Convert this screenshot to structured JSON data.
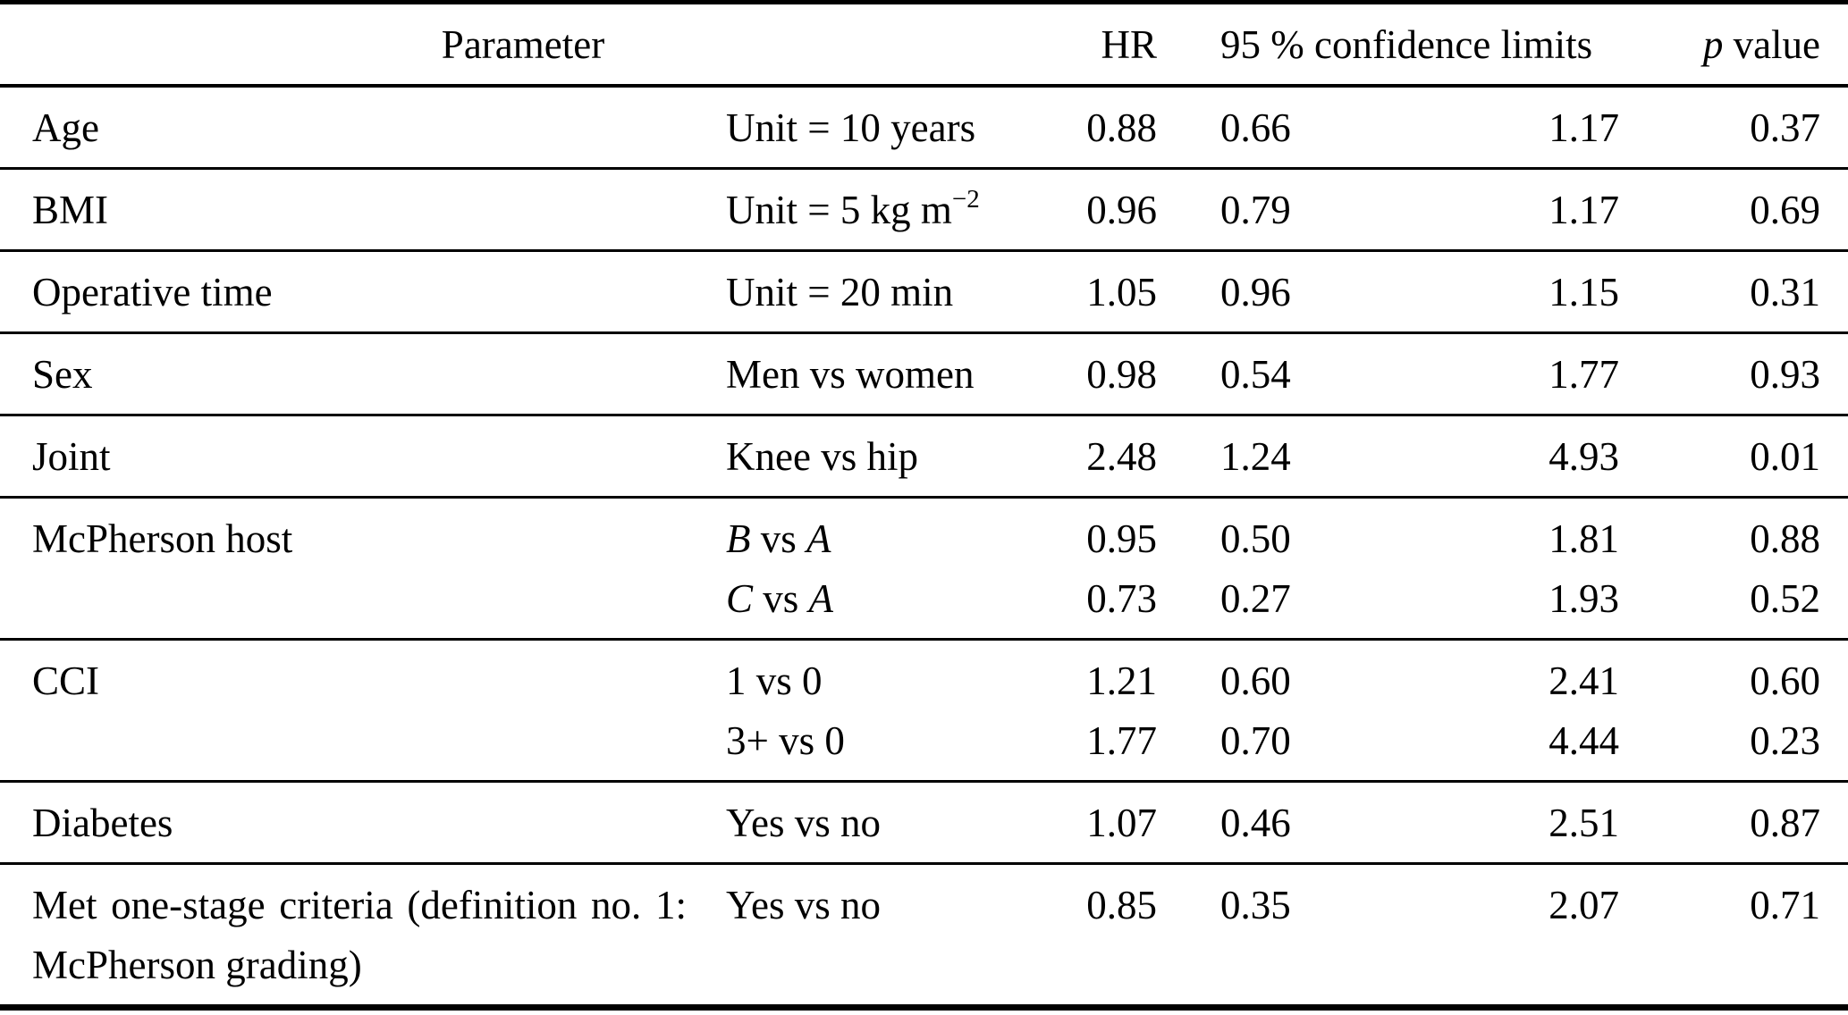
{
  "colors": {
    "background": "#ffffff",
    "text": "#000000",
    "rule": "#000000"
  },
  "table": {
    "header": {
      "parameter": "Parameter",
      "hr": "HR",
      "ci": "95 % confidence limits",
      "p_italic": "p",
      "p_rest": " value"
    },
    "rows": [
      {
        "parameter": "Age",
        "lines": [
          {
            "comparison": [
              {
                "text": "Unit = 10 years"
              }
            ],
            "hr": "0.88",
            "ci_low": "0.66",
            "ci_high": "1.17",
            "p": "0.37"
          }
        ]
      },
      {
        "parameter": "BMI",
        "lines": [
          {
            "comparison": [
              {
                "text": "Unit = 5 kg m"
              },
              {
                "text": "−2",
                "sup": true
              }
            ],
            "hr": "0.96",
            "ci_low": "0.79",
            "ci_high": "1.17",
            "p": "0.69"
          }
        ]
      },
      {
        "parameter": "Operative time",
        "lines": [
          {
            "comparison": [
              {
                "text": "Unit = 20 min"
              }
            ],
            "hr": "1.05",
            "ci_low": "0.96",
            "ci_high": "1.15",
            "p": "0.31"
          }
        ]
      },
      {
        "parameter": "Sex",
        "lines": [
          {
            "comparison": [
              {
                "text": "Men vs women"
              }
            ],
            "hr": "0.98",
            "ci_low": "0.54",
            "ci_high": "1.77",
            "p": "0.93"
          }
        ]
      },
      {
        "parameter": "Joint",
        "lines": [
          {
            "comparison": [
              {
                "text": "Knee vs hip"
              }
            ],
            "hr": "2.48",
            "ci_low": "1.24",
            "ci_high": "4.93",
            "p": "0.01"
          }
        ]
      },
      {
        "parameter": "McPherson host",
        "lines": [
          {
            "comparison": [
              {
                "text": "B",
                "italic": true
              },
              {
                "text": " vs "
              },
              {
                "text": "A",
                "italic": true
              }
            ],
            "hr": "0.95",
            "ci_low": "0.50",
            "ci_high": "1.81",
            "p": "0.88"
          },
          {
            "comparison": [
              {
                "text": "C",
                "italic": true
              },
              {
                "text": " vs "
              },
              {
                "text": "A",
                "italic": true
              }
            ],
            "hr": "0.73",
            "ci_low": "0.27",
            "ci_high": "1.93",
            "p": "0.52"
          }
        ]
      },
      {
        "parameter": "CCI",
        "lines": [
          {
            "comparison": [
              {
                "text": "1 vs 0"
              }
            ],
            "hr": "1.21",
            "ci_low": "0.60",
            "ci_high": "2.41",
            "p": "0.60"
          },
          {
            "comparison": [
              {
                "text": "3+ vs 0"
              }
            ],
            "hr": "1.77",
            "ci_low": "0.70",
            "ci_high": "4.44",
            "p": "0.23"
          }
        ]
      },
      {
        "parameter": "Diabetes",
        "lines": [
          {
            "comparison": [
              {
                "text": "Yes vs no"
              }
            ],
            "hr": "1.07",
            "ci_low": "0.46",
            "ci_high": "2.51",
            "p": "0.87"
          }
        ]
      },
      {
        "parameter": "Met one-stage criteria (definition no. 1: McPherson grading)",
        "lines": [
          {
            "comparison": [
              {
                "text": "Yes vs no"
              }
            ],
            "hr": "0.85",
            "ci_low": "0.35",
            "ci_high": "2.07",
            "p": "0.71"
          }
        ]
      }
    ]
  }
}
